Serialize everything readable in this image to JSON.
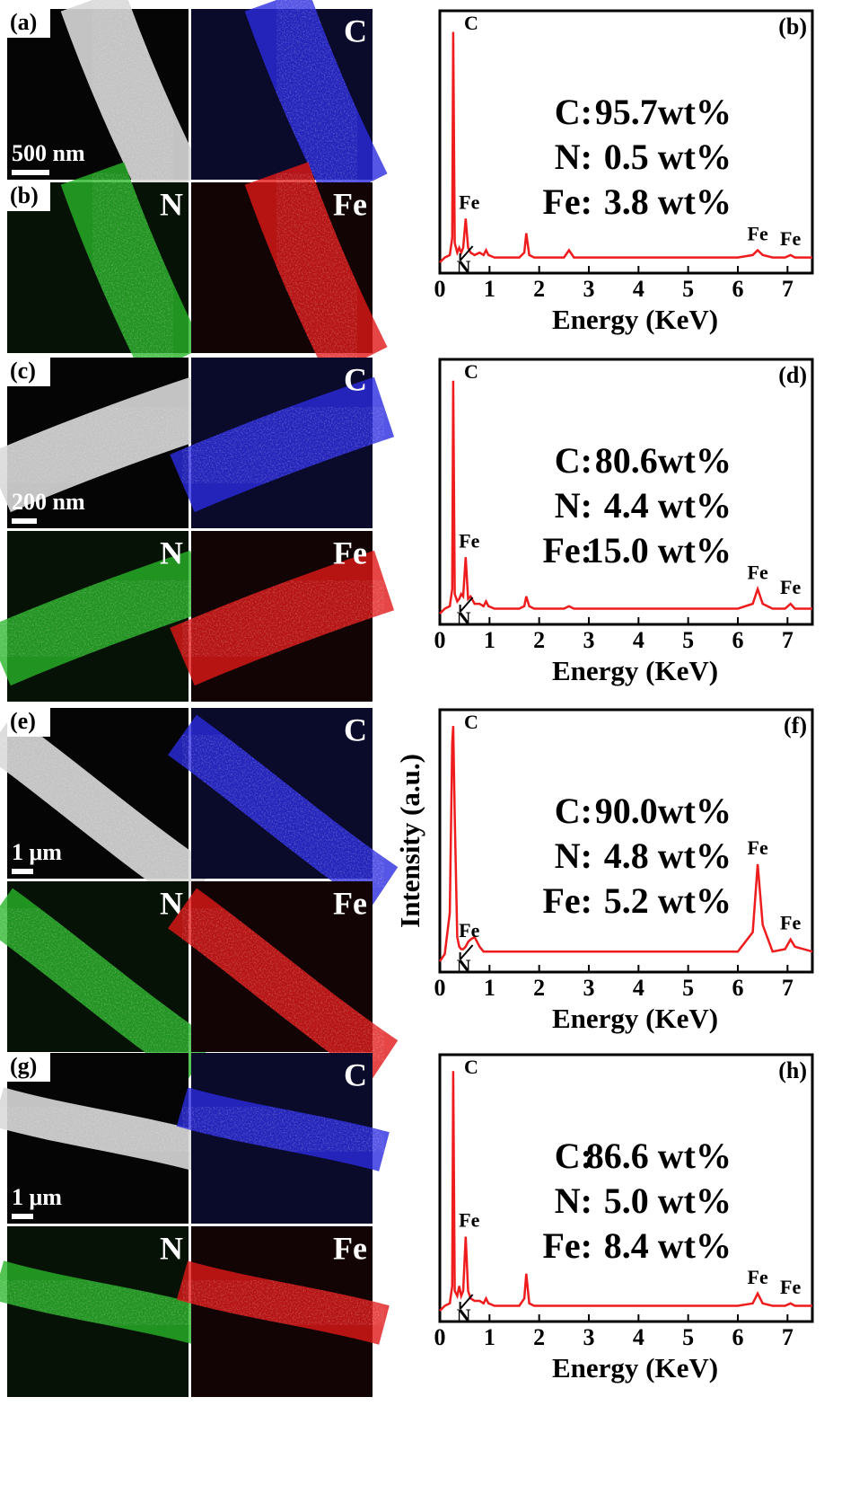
{
  "panels": [
    {
      "label": "(a)",
      "scale_bar": "500 nm",
      "map_labels": [
        "C",
        "N",
        "Fe"
      ],
      "second_label": "(b)"
    },
    {
      "label": "(c)",
      "scale_bar": "200 nm",
      "map_labels": [
        "C",
        "N",
        "Fe"
      ]
    },
    {
      "label": "(e)",
      "scale_bar": "1 μm",
      "map_labels": [
        "C",
        "N",
        "Fe"
      ]
    },
    {
      "label": "(g)",
      "scale_bar": "1 μm",
      "map_labels": [
        "C",
        "N",
        "Fe"
      ]
    }
  ],
  "chart_data": [
    {
      "type": "line",
      "panel_label": "(b)",
      "xlabel": "Energy (KeV)",
      "composition": [
        [
          "C:",
          "95.7wt%"
        ],
        [
          "N:",
          "0.5 wt%"
        ],
        [
          "Fe:",
          "3.8 wt%"
        ]
      ],
      "peak_labels": [
        "C",
        "Fe",
        "Fe",
        "Fe",
        "N"
      ],
      "x": [
        0.0,
        0.1,
        0.2,
        0.25,
        0.27,
        0.3,
        0.35,
        0.39,
        0.43,
        0.47,
        0.52,
        0.57,
        0.62,
        0.7,
        0.8,
        0.88,
        0.93,
        0.98,
        1.1,
        1.3,
        1.6,
        1.7,
        1.74,
        1.8,
        1.9,
        2.2,
        2.5,
        2.6,
        2.7,
        3,
        4,
        5,
        6,
        6.3,
        6.4,
        6.5,
        6.7,
        6.95,
        7.06,
        7.15,
        7.5
      ],
      "series": [
        {
          "color": "#ee1c1c",
          "values": [
            0,
            2,
            3,
            10,
            95,
            8,
            4,
            6,
            4,
            6,
            18,
            6,
            4,
            3,
            4,
            3,
            5,
            3,
            2,
            2,
            2,
            4,
            12,
            3,
            2,
            2,
            2,
            5,
            2,
            2,
            2,
            2,
            2,
            3,
            5,
            3,
            2,
            2,
            3,
            2,
            2
          ]
        }
      ],
      "xlim": [
        0,
        7.5
      ],
      "xticks": [
        0,
        1,
        2,
        3,
        4,
        5,
        6,
        7
      ],
      "ylim": [
        0,
        100
      ]
    },
    {
      "type": "line",
      "panel_label": "(d)",
      "xlabel": "Energy (KeV)",
      "composition": [
        [
          "C:",
          "80.6wt%"
        ],
        [
          "N:",
          "4.4 wt%"
        ],
        [
          "Fe:",
          "15.0 wt%"
        ]
      ],
      "peak_labels": [
        "C",
        "Fe",
        "Fe",
        "Fe",
        "N"
      ],
      "x": [
        0.0,
        0.1,
        0.2,
        0.25,
        0.27,
        0.3,
        0.35,
        0.39,
        0.43,
        0.47,
        0.52,
        0.57,
        0.62,
        0.7,
        0.8,
        0.88,
        0.93,
        0.98,
        1.1,
        1.3,
        1.6,
        1.7,
        1.74,
        1.8,
        1.9,
        2.2,
        2.5,
        2.6,
        2.7,
        3,
        4,
        5,
        6,
        6.3,
        6.4,
        6.5,
        6.7,
        6.95,
        7.06,
        7.15,
        7.5
      ],
      "series": [
        {
          "color": "#ee1c1c",
          "values": [
            0,
            2,
            3,
            10,
            95,
            8,
            5,
            6,
            8,
            7,
            23,
            6,
            7,
            4,
            4,
            3,
            5,
            3,
            2,
            2,
            2,
            3,
            7,
            3,
            2,
            2,
            2,
            3,
            2,
            2,
            2,
            2,
            2,
            4,
            10,
            4,
            2,
            2,
            4,
            2,
            2
          ]
        }
      ],
      "xlim": [
        0,
        7.5
      ],
      "xticks": [
        0,
        1,
        2,
        3,
        4,
        5,
        6,
        7
      ],
      "ylim": [
        0,
        100
      ]
    },
    {
      "type": "line",
      "panel_label": "(f)",
      "xlabel": "Energy (KeV)",
      "ylabel": "Intensity (a.u.)",
      "composition": [
        [
          "C:",
          "90.0wt%"
        ],
        [
          "N:",
          "4.8 wt%"
        ],
        [
          "Fe:",
          "5.2 wt%"
        ]
      ],
      "peak_labels": [
        "C",
        "Fe",
        "Fe",
        "Fe",
        "N"
      ],
      "x": [
        0.0,
        0.1,
        0.2,
        0.25,
        0.27,
        0.3,
        0.35,
        0.39,
        0.43,
        0.47,
        0.52,
        0.57,
        0.62,
        0.7,
        0.8,
        0.88,
        0.93,
        0.98,
        1.1,
        1.3,
        1.6,
        1.7,
        1.74,
        1.8,
        1.9,
        2.2,
        2.5,
        2.6,
        2.7,
        3,
        4,
        5,
        6,
        6.3,
        6.4,
        6.5,
        6.7,
        6.95,
        7.06,
        7.15,
        7.5
      ],
      "series": [
        {
          "color": "#ee1c1c",
          "values": [
            0,
            3,
            20,
            90,
            97,
            60,
            10,
            6,
            5,
            5,
            6,
            8,
            9,
            10,
            6,
            4,
            4,
            4,
            4,
            4,
            4,
            4,
            4,
            4,
            4,
            4,
            4,
            4,
            4,
            4,
            4,
            4,
            4,
            12,
            40,
            15,
            4,
            5,
            9,
            6,
            4
          ]
        }
      ],
      "xlim": [
        0,
        7.5
      ],
      "xticks": [
        0,
        1,
        2,
        3,
        4,
        5,
        6,
        7
      ],
      "ylim": [
        0,
        100
      ]
    },
    {
      "type": "line",
      "panel_label": "(h)",
      "xlabel": "Energy (KeV)",
      "composition": [
        [
          "C:",
          "86.6 wt%"
        ],
        [
          "N:",
          "5.0 wt%"
        ],
        [
          "Fe:",
          "8.4 wt%"
        ]
      ],
      "peak_labels": [
        "C",
        "Fe",
        "Fe",
        "Fe",
        "N"
      ],
      "x": [
        0.0,
        0.1,
        0.2,
        0.25,
        0.27,
        0.3,
        0.35,
        0.39,
        0.43,
        0.47,
        0.52,
        0.57,
        0.62,
        0.7,
        0.8,
        0.88,
        0.93,
        0.98,
        1.1,
        1.3,
        1.6,
        1.7,
        1.74,
        1.8,
        1.9,
        2.2,
        2.5,
        2.6,
        2.7,
        3,
        4,
        5,
        6,
        6.3,
        6.4,
        6.5,
        6.7,
        6.95,
        7.06,
        7.15,
        7.5
      ],
      "series": [
        {
          "color": "#ee1c1c",
          "values": [
            0,
            2,
            3,
            10,
            97,
            8,
            6,
            10,
            6,
            8,
            30,
            8,
            5,
            4,
            4,
            3,
            5,
            3,
            2,
            2,
            2,
            5,
            15,
            3,
            2,
            2,
            2,
            2,
            2,
            2,
            2,
            2,
            2,
            3,
            7,
            3,
            2,
            2,
            3,
            2,
            2
          ]
        }
      ],
      "xlim": [
        0,
        7.5
      ],
      "xticks": [
        0,
        1,
        2,
        3,
        4,
        5,
        6,
        7
      ],
      "ylim": [
        0,
        100
      ]
    }
  ]
}
